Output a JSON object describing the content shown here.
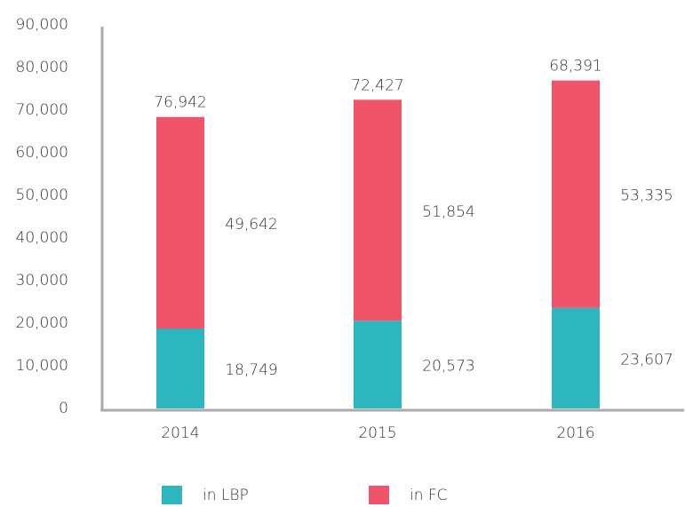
{
  "chart_data": {
    "type": "stacked_bar",
    "categories": [
      "2014",
      "2015",
      "2016"
    ],
    "series": [
      {
        "name": "in LBP",
        "color": "#2db5c0",
        "values": [
          18749,
          20573,
          23607
        ],
        "value_labels": [
          "18,749",
          "20,573",
          "23,607"
        ]
      },
      {
        "name": "in FC",
        "color": "#f0546a",
        "values": [
          49642,
          51854,
          53335
        ],
        "value_labels": [
          "49,642",
          "51,854",
          "53,335"
        ]
      }
    ],
    "annotations": [
      "76,942",
      "72,427",
      "68,391"
    ],
    "ylim": [
      0,
      90000
    ],
    "yticks": [
      0,
      {
        "value": 10000,
        "label": "10,000"
      },
      {
        "value": 20000,
        "label": "20,000"
      },
      {
        "value": 30000,
        "label": "30,000"
      },
      {
        "value": 40000,
        "label": "40,000"
      },
      {
        "value": 50000,
        "label": "50,000"
      },
      {
        "value": 60000,
        "label": "60,000"
      },
      {
        "value": 70000,
        "label": "70,000"
      },
      {
        "value": 80000,
        "label": "80,000"
      },
      {
        "value": 90000,
        "label": "90,000"
      }
    ],
    "grid": false,
    "legend": "bottom"
  }
}
